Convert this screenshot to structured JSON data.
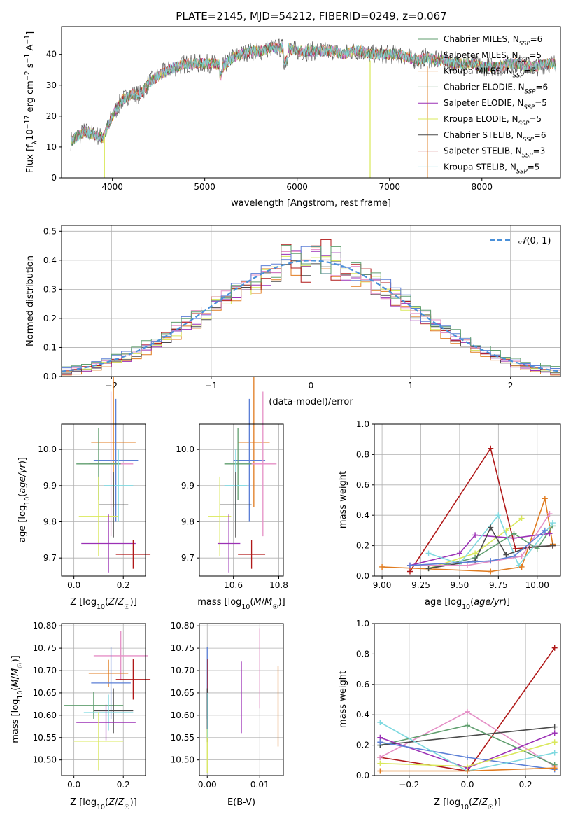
{
  "figure": {
    "title": "PLATE=2145, MJD=54212, FIBERID=0249, z=0.067"
  },
  "colors": {
    "Chabrier MILES": "#5f9e6e",
    "Salpeter MILES": "#e58fc6",
    "Kroupa MILES": "#e07b1f",
    "Chabrier ELODIE": "#4c8c5c",
    "Salpeter ELODIE": "#9b30b5",
    "Kroupa ELODIE": "#d9e85a",
    "Chabrier STELIB": "#4a4a4a",
    "Salpeter STELIB": "#b01818",
    "Kroupa STELIB": "#7fd9e0",
    "Blue": "#5b7fd6",
    "Normal": "#4a90d9"
  },
  "chart_data": [
    {
      "id": "spectrum",
      "type": "line",
      "title": "PLATE=2145, MJD=54212, FIBERID=0249, z=0.067",
      "xlabel": "wavelength [Angstrom, rest frame]",
      "ylabel": "Flux [f_λ 10^-17 erg cm^-2 s^-1 A^-1]",
      "xlim": [
        3450,
        8850
      ],
      "ylim": [
        0,
        49
      ],
      "xticks": [
        4000,
        5000,
        6000,
        7000,
        8000
      ],
      "yticks": [
        0,
        10,
        20,
        30,
        40
      ],
      "legend_position": "top-right",
      "legend": [
        {
          "label": "Chabrier MILES, N",
          "sub": "SSP",
          "tail": "=6"
        },
        {
          "label": "Salpeter MILES, N",
          "sub": "SSP",
          "tail": "=5"
        },
        {
          "label": "Kroupa MILES, N",
          "sub": "SSP",
          "tail": "=5"
        },
        {
          "label": "Chabrier ELODIE, N",
          "sub": "SSP",
          "tail": "=6"
        },
        {
          "label": "Salpeter ELODIE, N",
          "sub": "SSP",
          "tail": "=5"
        },
        {
          "label": "Kroupa ELODIE, N",
          "sub": "SSP",
          "tail": "=5"
        },
        {
          "label": "Chabrier STELIB, N",
          "sub": "SSP",
          "tail": "=6"
        },
        {
          "label": "Salpeter STELIB, N",
          "sub": "SSP",
          "tail": "=3"
        },
        {
          "label": "Kroupa STELIB, N",
          "sub": "SSP",
          "tail": "=5"
        }
      ],
      "continuum": [
        [
          3550,
          12
        ],
        [
          3700,
          15
        ],
        [
          3800,
          14
        ],
        [
          3900,
          13
        ],
        [
          4000,
          20
        ],
        [
          4100,
          25
        ],
        [
          4200,
          27
        ],
        [
          4300,
          27
        ],
        [
          4400,
          31
        ],
        [
          4500,
          33
        ],
        [
          4600,
          35
        ],
        [
          4700,
          36
        ],
        [
          4800,
          37
        ],
        [
          4900,
          37
        ],
        [
          5000,
          37
        ],
        [
          5100,
          37
        ],
        [
          5200,
          36
        ],
        [
          5300,
          39
        ],
        [
          5400,
          40
        ],
        [
          5500,
          41
        ],
        [
          5600,
          41
        ],
        [
          5700,
          42
        ],
        [
          5800,
          42
        ],
        [
          5900,
          42
        ],
        [
          6000,
          41
        ],
        [
          6100,
          41
        ],
        [
          6200,
          41
        ],
        [
          6300,
          41
        ],
        [
          6400,
          41
        ],
        [
          6500,
          40
        ],
        [
          6600,
          41
        ],
        [
          6700,
          41
        ],
        [
          6800,
          40
        ],
        [
          6900,
          40
        ],
        [
          7000,
          40
        ],
        [
          7100,
          40
        ],
        [
          7200,
          39
        ],
        [
          7300,
          38
        ],
        [
          7400,
          39
        ],
        [
          7500,
          38
        ],
        [
          7600,
          38
        ],
        [
          7700,
          37
        ],
        [
          7800,
          37
        ],
        [
          7900,
          37
        ],
        [
          8000,
          36
        ],
        [
          8100,
          36
        ],
        [
          8200,
          36
        ],
        [
          8300,
          37
        ],
        [
          8400,
          37
        ],
        [
          8500,
          36
        ],
        [
          8600,
          36
        ],
        [
          8700,
          37
        ],
        [
          8800,
          37
        ]
      ]
    },
    {
      "id": "residuals",
      "type": "bar",
      "xlabel": "(data-model)/error",
      "ylabel": "Normed distribution",
      "xlim": [
        -2.5,
        2.5
      ],
      "ylim": [
        0,
        0.52
      ],
      "xticks": [
        -2,
        -1,
        0,
        1,
        2
      ],
      "yticks": [
        0.0,
        0.1,
        0.2,
        0.3,
        0.4,
        0.5
      ],
      "legend_label": "N(0,1)",
      "bin_width": 0.1
    },
    {
      "id": "age_vs_Z",
      "type": "scatter",
      "xlabel": "Z [log10(Z/Z☉)]",
      "ylabel": "age [log10(age/yr)]",
      "xlim": [
        -0.05,
        0.29
      ],
      "ylim": [
        9.65,
        10.07
      ],
      "xticks": [
        0.0,
        0.2
      ],
      "yticks": [
        9.7,
        9.8,
        9.9,
        10.0
      ],
      "points": [
        {
          "model": "Kroupa MILES",
          "x": 0.16,
          "xerr": 0.09,
          "y": 10.02,
          "yerr": 0.18
        },
        {
          "model": "Blue",
          "x": 0.17,
          "xerr": 0.09,
          "y": 9.97,
          "yerr": 0.17
        },
        {
          "model": "Salpeter MILES",
          "x": 0.15,
          "xerr": 0.09,
          "y": 9.96,
          "yerr": 0.2
        },
        {
          "model": "Chabrier MILES",
          "x": 0.1,
          "xerr": 0.09,
          "y": 9.96,
          "yerr": 0.1
        },
        {
          "model": "Kroupa STELIB",
          "x": 0.18,
          "xerr": 0.06,
          "y": 9.9,
          "yerr": 0.1
        },
        {
          "model": "Chabrier STELIB",
          "x": 0.16,
          "xerr": 0.06,
          "y": 9.847,
          "yerr": 0.09
        },
        {
          "model": "Kroupa ELODIE",
          "x": 0.1,
          "xerr": 0.08,
          "y": 9.815,
          "yerr": 0.11
        },
        {
          "model": "Salpeter ELODIE",
          "x": 0.14,
          "xerr": 0.11,
          "y": 9.74,
          "yerr": 0.08
        },
        {
          "model": "Salpeter STELIB",
          "x": 0.24,
          "xerr": 0.07,
          "y": 9.71,
          "yerr": 0.04
        }
      ]
    },
    {
      "id": "age_vs_mass",
      "type": "scatter",
      "xlabel": "mass [log10(M/M☉)]",
      "ylabel": "",
      "xlim": [
        10.45,
        10.82
      ],
      "ylim": [
        9.65,
        10.07
      ],
      "xticks": [
        10.6,
        10.8
      ],
      "yticks": [
        9.7,
        9.8,
        9.9,
        10.0
      ],
      "points": [
        {
          "model": "Kroupa MILES",
          "x": 10.69,
          "xerr": 0.07,
          "y": 10.02,
          "yerr": 0.18
        },
        {
          "model": "Blue",
          "x": 10.67,
          "xerr": 0.07,
          "y": 9.97,
          "yerr": 0.17
        },
        {
          "model": "Salpeter MILES",
          "x": 10.73,
          "xerr": 0.06,
          "y": 9.96,
          "yerr": 0.2
        },
        {
          "model": "Chabrier MILES",
          "x": 10.62,
          "xerr": 0.06,
          "y": 9.96,
          "yerr": 0.1
        },
        {
          "model": "Kroupa STELIB",
          "x": 10.61,
          "xerr": 0.05,
          "y": 9.9,
          "yerr": 0.1
        },
        {
          "model": "Chabrier STELIB",
          "x": 10.61,
          "xerr": 0.07,
          "y": 9.847,
          "yerr": 0.09
        },
        {
          "model": "Kroupa ELODIE",
          "x": 10.54,
          "xerr": 0.05,
          "y": 9.815,
          "yerr": 0.11
        },
        {
          "model": "Salpeter ELODIE",
          "x": 10.58,
          "xerr": 0.05,
          "y": 9.74,
          "yerr": 0.08
        },
        {
          "model": "Salpeter STELIB",
          "x": 10.68,
          "xerr": 0.06,
          "y": 9.71,
          "yerr": 0.04
        }
      ]
    },
    {
      "id": "mass_weight_vs_age",
      "type": "line",
      "xlabel": "age [log10(age/yr)]",
      "ylabel": "mass weight",
      "xlim": [
        8.95,
        10.15
      ],
      "ylim": [
        0,
        1.0
      ],
      "xticks": [
        9.0,
        9.25,
        9.5,
        9.75,
        10.0
      ],
      "yticks": [
        0.0,
        0.2,
        0.4,
        0.6,
        0.8,
        1.0
      ],
      "series": [
        {
          "model": "Salpeter STELIB",
          "x": [
            9.18,
            9.7,
            9.86,
            10.1
          ],
          "y": [
            0.03,
            0.84,
            0.18,
            0.2
          ]
        },
        {
          "model": "Kroupa MILES",
          "x": [
            9.0,
            9.7,
            9.9,
            10.05,
            10.1
          ],
          "y": [
            0.06,
            0.03,
            0.06,
            0.51,
            0.21
          ]
        },
        {
          "model": "Kroupa ELODIE",
          "x": [
            9.3,
            9.6,
            9.8,
            9.9
          ],
          "y": [
            0.05,
            0.15,
            0.3,
            0.38
          ]
        },
        {
          "model": "Chabrier MILES",
          "x": [
            9.3,
            9.6,
            9.85,
            10.0,
            10.1
          ],
          "y": [
            0.05,
            0.12,
            0.28,
            0.18,
            0.33
          ]
        },
        {
          "model": "Salpeter ELODIE",
          "x": [
            9.18,
            9.5,
            9.6,
            9.85,
            10.08
          ],
          "y": [
            0.07,
            0.15,
            0.27,
            0.25,
            0.28
          ]
        },
        {
          "model": "Kroupa STELIB",
          "x": [
            9.3,
            9.5,
            9.75,
            9.88,
            10.1
          ],
          "y": [
            0.15,
            0.08,
            0.4,
            0.07,
            0.35
          ]
        },
        {
          "model": "Chabrier STELIB",
          "x": [
            9.3,
            9.6,
            9.7,
            9.8,
            9.95,
            10.1
          ],
          "y": [
            0.05,
            0.1,
            0.32,
            0.14,
            0.19,
            0.2
          ]
        },
        {
          "model": "Salpeter MILES",
          "x": [
            9.18,
            9.55,
            9.9,
            10.08
          ],
          "y": [
            0.07,
            0.07,
            0.13,
            0.41
          ]
        },
        {
          "model": "Blue",
          "x": [
            9.18,
            9.7,
            9.85,
            10.05
          ],
          "y": [
            0.07,
            0.1,
            0.13,
            0.3
          ]
        }
      ]
    },
    {
      "id": "mass_vs_Z",
      "type": "scatter",
      "xlabel": "Z [log10(Z/Z☉)]",
      "ylabel": "mass [log10(M/M☉)]",
      "xlim": [
        -0.05,
        0.29
      ],
      "ylim": [
        10.465,
        10.805
      ],
      "xticks": [
        0.0,
        0.2
      ],
      "yticks": [
        10.5,
        10.55,
        10.6,
        10.65,
        10.7,
        10.75,
        10.8
      ],
      "points": [
        {
          "model": "Salpeter MILES",
          "x": 0.19,
          "xerr": 0.11,
          "y": 10.733,
          "yerr": 0.055
        },
        {
          "model": "Kroupa MILES",
          "x": 0.14,
          "xerr": 0.08,
          "y": 10.694,
          "yerr": 0.03
        },
        {
          "model": "Salpeter STELIB",
          "x": 0.24,
          "xerr": 0.07,
          "y": 10.68,
          "yerr": 0.045
        },
        {
          "model": "Blue",
          "x": 0.15,
          "xerr": 0.08,
          "y": 10.672,
          "yerr": 0.08
        },
        {
          "model": "Chabrier MILES",
          "x": 0.08,
          "xerr": 0.12,
          "y": 10.622,
          "yerr": 0.03
        },
        {
          "model": "Chabrier STELIB",
          "x": 0.16,
          "xerr": 0.08,
          "y": 10.61,
          "yerr": 0.05
        },
        {
          "model": "Kroupa STELIB",
          "x": 0.14,
          "xerr": 0.1,
          "y": 10.606,
          "yerr": 0.04
        },
        {
          "model": "Salpeter ELODIE",
          "x": 0.13,
          "xerr": 0.12,
          "y": 10.584,
          "yerr": 0.04
        },
        {
          "model": "Kroupa ELODIE",
          "x": 0.1,
          "xerr": 0.1,
          "y": 10.542,
          "yerr": 0.065
        }
      ]
    },
    {
      "id": "mass_vs_ebv",
      "type": "scatter",
      "xlabel": "E(B-V)",
      "ylabel": "",
      "xlim": [
        -0.0015,
        0.0145
      ],
      "ylim": [
        10.465,
        10.805
      ],
      "xticks": [
        0.0,
        0.01
      ],
      "yticks": [
        10.5,
        10.55,
        10.6,
        10.65,
        10.7,
        10.75,
        10.8
      ],
      "points": [
        {
          "model": "Blue",
          "x": 0.0,
          "y": 10.672,
          "yerr": 0.08
        },
        {
          "model": "Salpeter STELIB",
          "x": 0.0001,
          "y": 10.68,
          "yerr": 0.045
        },
        {
          "model": "Chabrier STELIB",
          "x": 0.0,
          "y": 10.6,
          "yerr": 0.06
        },
        {
          "model": "Kroupa ELODIE",
          "x": 0.0,
          "y": 10.52,
          "yerr": 0.05
        },
        {
          "model": "Kroupa STELIB",
          "x": 0.0001,
          "y": 10.6,
          "yerr": 0.05
        },
        {
          "model": "Salpeter ELODIE",
          "x": 0.0065,
          "y": 10.64,
          "yerr": 0.08
        },
        {
          "model": "Salpeter MILES",
          "x": 0.01,
          "y": 10.705,
          "yerr": 0.09
        },
        {
          "model": "Kroupa MILES",
          "x": 0.0135,
          "y": 10.62,
          "yerr": 0.09
        }
      ]
    },
    {
      "id": "mass_weight_vs_Z",
      "type": "line",
      "xlabel": "Z [log10(Z/Z☉)]",
      "ylabel": "mass weight",
      "xlim": [
        -0.32,
        0.32
      ],
      "ylim": [
        0,
        1.0
      ],
      "xticks": [
        -0.2,
        0.0,
        0.2
      ],
      "yticks": [
        0.0,
        0.2,
        0.4,
        0.6,
        0.8,
        1.0
      ],
      "series": [
        {
          "model": "Salpeter STELIB",
          "x": [
            -0.3,
            0.0,
            0.3
          ],
          "y": [
            0.12,
            0.03,
            0.84
          ]
        },
        {
          "model": "Salpeter MILES",
          "x": [
            -0.3,
            0.0,
            0.3
          ],
          "y": [
            0.12,
            0.42,
            0.06
          ]
        },
        {
          "model": "Chabrier MILES",
          "x": [
            -0.3,
            0.0,
            0.3
          ],
          "y": [
            0.2,
            0.33,
            0.07
          ]
        },
        {
          "model": "Chabrier STELIB",
          "x": [
            -0.3,
            0.3
          ],
          "y": [
            0.2,
            0.32
          ]
        },
        {
          "model": "Salpeter ELODIE",
          "x": [
            -0.3,
            0.0,
            0.3
          ],
          "y": [
            0.25,
            0.05,
            0.28
          ]
        },
        {
          "model": "Blue",
          "x": [
            -0.3,
            0.0,
            0.3
          ],
          "y": [
            0.22,
            0.12,
            0.04
          ]
        },
        {
          "model": "Kroupa STELIB",
          "x": [
            -0.3,
            0.0,
            0.3
          ],
          "y": [
            0.35,
            0.03,
            0.15
          ]
        },
        {
          "model": "Kroupa ELODIE",
          "x": [
            -0.3,
            0.0,
            0.3
          ],
          "y": [
            0.08,
            0.06,
            0.22
          ]
        },
        {
          "model": "Kroupa MILES",
          "x": [
            -0.3,
            0.0,
            0.3
          ],
          "y": [
            0.03,
            0.03,
            0.05
          ]
        }
      ]
    }
  ]
}
